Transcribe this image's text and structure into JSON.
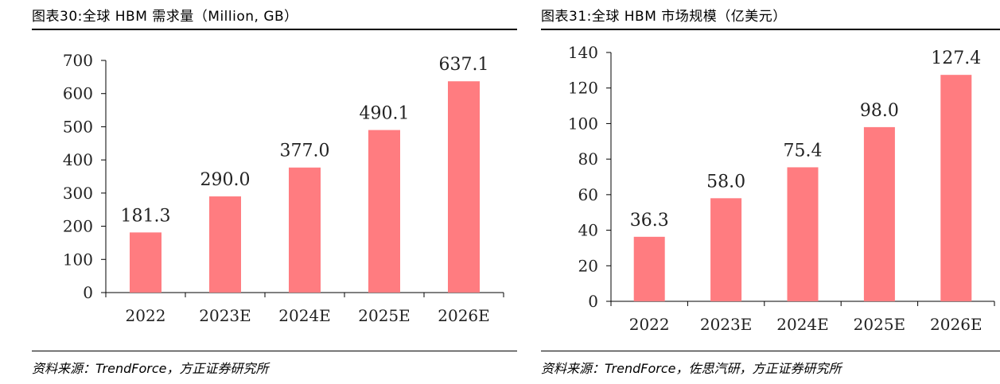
{
  "colors": {
    "bar": "#ff7c80",
    "axis": "#000000",
    "text": "#222222"
  },
  "left": {
    "title": "图表30:全球 HBM 需求量（Million, GB）",
    "source": "资料来源：TrendForce，方正证券研究所"
  },
  "right": {
    "title": "图表31:全球 HBM 市场规模（亿美元）",
    "source": "资料来源：TrendForce，佐思汽研，方正证券研究所"
  },
  "chart_data": [
    {
      "type": "bar",
      "title": "图表30:全球 HBM 需求量（Million, GB）",
      "categories": [
        "2022",
        "2023E",
        "2024E",
        "2025E",
        "2026E"
      ],
      "values": [
        181.3,
        290.0,
        377.0,
        490.1,
        637.1
      ],
      "labels": [
        "181.3",
        "290.0",
        "377.0",
        "490.1",
        "637.1"
      ],
      "ylim": [
        0,
        700
      ],
      "yticks": [
        0,
        100,
        200,
        300,
        400,
        500,
        600,
        700
      ],
      "xlabel": "",
      "ylabel": "",
      "grid": false
    },
    {
      "type": "bar",
      "title": "图表31:全球 HBM 市场规模（亿美元）",
      "categories": [
        "2022",
        "2023E",
        "2024E",
        "2025E",
        "2026E"
      ],
      "values": [
        36.3,
        58.0,
        75.4,
        98.0,
        127.4
      ],
      "labels": [
        "36.3",
        "58.0",
        "75.4",
        "98.0",
        "127.4"
      ],
      "ylim": [
        0,
        140
      ],
      "yticks": [
        0,
        20,
        40,
        60,
        80,
        100,
        120,
        140
      ],
      "xlabel": "",
      "ylabel": "",
      "grid": false
    }
  ]
}
